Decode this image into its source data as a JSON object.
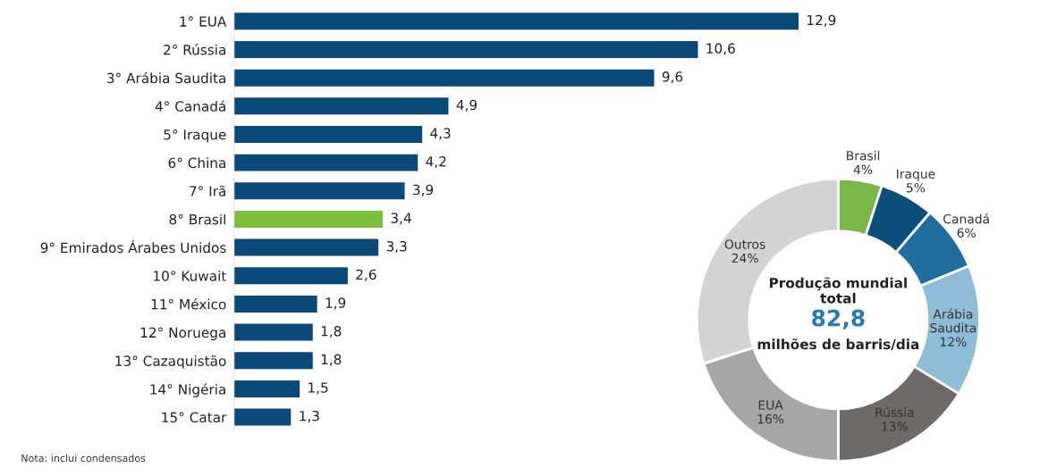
{
  "chart_data": [
    {
      "type": "bar",
      "orientation": "horizontal",
      "categories": [
        "1° EUA",
        "2° Rússia",
        "3° Arábia Saudita",
        "4° Canadá",
        "5° Iraque",
        "6° China",
        "7° Irã",
        "8° Brasil",
        "9° Emirados Árabes Unidos",
        "10° Kuwait",
        "11° México",
        "12° Noruega",
        "13° Cazaquistão",
        "14° Nigéria",
        "15° Catar"
      ],
      "values": [
        12.9,
        10.6,
        9.6,
        4.9,
        4.3,
        4.2,
        3.9,
        3.4,
        3.3,
        2.6,
        1.9,
        1.8,
        1.8,
        1.5,
        1.3
      ],
      "value_labels": [
        "12,9",
        "10,6",
        "9,6",
        "4,9",
        "4,3",
        "4,2",
        "3,9",
        "3,4",
        "3,3",
        "2,6",
        "1,9",
        "1,8",
        "1,8",
        "1,5",
        "1,3"
      ],
      "colors": [
        "#0b4a78",
        "#0b4a78",
        "#0b4a78",
        "#0b4a78",
        "#0b4a78",
        "#0b4a78",
        "#0b4a78",
        "#7dbe3c",
        "#0b4a78",
        "#0b4a78",
        "#0b4a78",
        "#0b4a78",
        "#0b4a78",
        "#0b4a78",
        "#0b4a78"
      ],
      "tick_labels": "y",
      "annotations": [
        "Nota: inclui condensados"
      ]
    },
    {
      "type": "donut",
      "categories": [
        "Brasil",
        "Iraque",
        "Canadá",
        "Arábia\nSaudita",
        "Rússia",
        "EUA",
        "Outros"
      ],
      "values": [
        4,
        5,
        6,
        12,
        13,
        16,
        24
      ],
      "value_labels": [
        "4%",
        "5%",
        "6%",
        "12%",
        "13%",
        "16%",
        "24%"
      ],
      "colors": [
        "#7ab648",
        "#0b4f7a",
        "#1f6e9e",
        "#8fbcd6",
        "#6e6a69",
        "#a6a6a6",
        "#d3d3d3"
      ],
      "annotations": [
        "Produção mundial\ntotal",
        "82,8",
        "milhões de barris/dia"
      ]
    }
  ]
}
